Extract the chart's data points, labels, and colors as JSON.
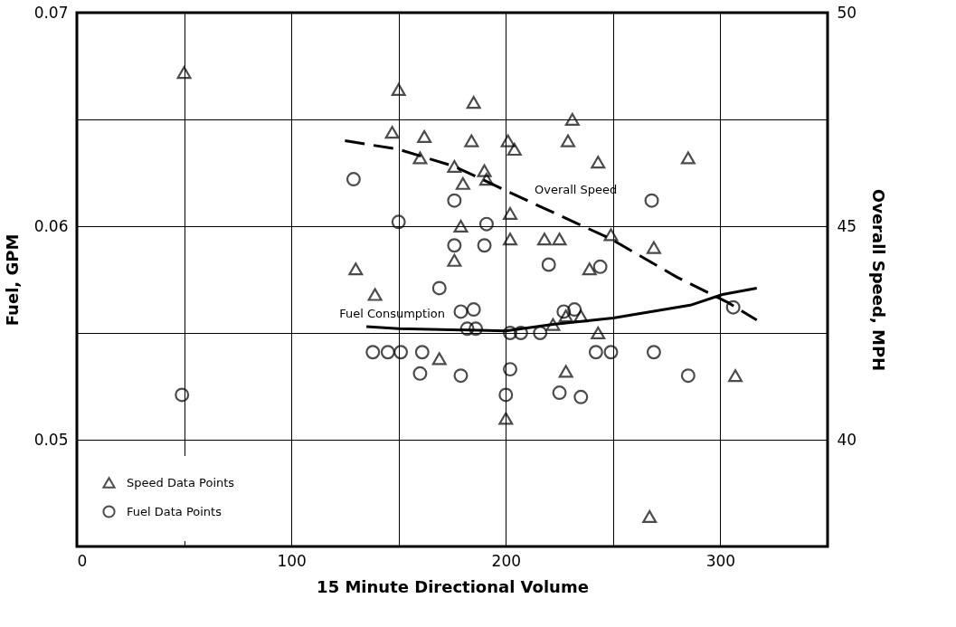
{
  "chart_data": {
    "type": "scatter",
    "xlabel": "15 Minute Directional Volume",
    "ylabel": "Fuel, GPM",
    "y2label": "Overall Speed, MPH",
    "xlim": [
      0,
      350
    ],
    "xticks": [
      0,
      {
        "value": 50,
        "label": null
      },
      100,
      {
        "value": 150,
        "label": null
      },
      200,
      {
        "value": 250,
        "label": null
      },
      300
    ],
    "ylim": [
      0.045,
      0.07
    ],
    "yticks": [
      0.05,
      {
        "value": 0.055,
        "label": null
      },
      0.06,
      {
        "value": 0.065,
        "label": null
      },
      0.07
    ],
    "y2lim": [
      37.5,
      50
    ],
    "y2ticks": [
      40,
      45,
      50
    ],
    "grid": true,
    "legend": "bottom left",
    "series": [
      {
        "name": "Speed Data Points",
        "axis": "y2",
        "marker": "triangle",
        "color": "#000000",
        "x": [
          50,
          150,
          147,
          162,
          160,
          176,
          130,
          185,
          231,
          184,
          201,
          204,
          229,
          190,
          191,
          180,
          243,
          285,
          202,
          179,
          202,
          218,
          225,
          249,
          269,
          176,
          239,
          139,
          169,
          228,
          235,
          222,
          243,
          228,
          307,
          200,
          267
        ],
        "values": [
          48.6,
          48.2,
          47.2,
          47.1,
          46.6,
          46.4,
          44.0,
          47.9,
          47.5,
          47.0,
          47.0,
          46.8,
          47.0,
          46.3,
          46.1,
          46.0,
          46.5,
          46.6,
          45.3,
          45.0,
          44.7,
          44.7,
          44.7,
          44.8,
          44.5,
          44.2,
          44.0,
          43.4,
          41.9,
          42.9,
          42.9,
          42.7,
          42.5,
          41.6,
          41.5,
          40.5,
          38.2
        ]
      },
      {
        "name": "Fuel Data Points",
        "marker": "circle",
        "color": "#000000",
        "x": [
          129,
          150,
          176,
          176,
          191,
          190,
          220,
          244,
          268,
          169,
          138,
          145,
          151,
          161,
          160,
          49,
          179,
          185,
          182,
          186,
          202,
          207,
          216,
          227,
          232,
          306,
          179,
          242,
          249,
          269,
          202,
          200,
          225,
          235,
          285
        ],
        "values": [
          0.0622,
          0.0602,
          0.0612,
          0.0591,
          0.0601,
          0.0591,
          0.0582,
          0.0581,
          0.0612,
          0.0571,
          0.0541,
          0.0541,
          0.0541,
          0.0541,
          0.0531,
          0.0521,
          0.056,
          0.0561,
          0.0552,
          0.0552,
          0.055,
          0.055,
          0.055,
          0.056,
          0.0561,
          0.0562,
          0.053,
          0.0541,
          0.0541,
          0.0541,
          0.0533,
          0.0521,
          0.0522,
          0.052,
          0.053
        ]
      },
      {
        "name": "Overall Speed",
        "type": "line",
        "axis": "y2",
        "line_style": "dashed",
        "marker": "none",
        "color": "#000000",
        "x": [
          125,
          150,
          176,
          210,
          249,
          280,
          304,
          317
        ],
        "values": [
          47.0,
          46.8,
          46.4,
          45.6,
          44.7,
          43.8,
          43.2,
          42.8
        ]
      },
      {
        "name": "Fuel Consumption",
        "type": "line",
        "line_style": "solid",
        "marker": "none",
        "color": "#000000",
        "x": [
          135,
          150,
          200,
          222,
          250,
          286,
          301,
          317
        ],
        "values": [
          0.0553,
          0.0552,
          0.0551,
          0.0554,
          0.0557,
          0.0563,
          0.0568,
          0.0571
        ]
      }
    ]
  }
}
